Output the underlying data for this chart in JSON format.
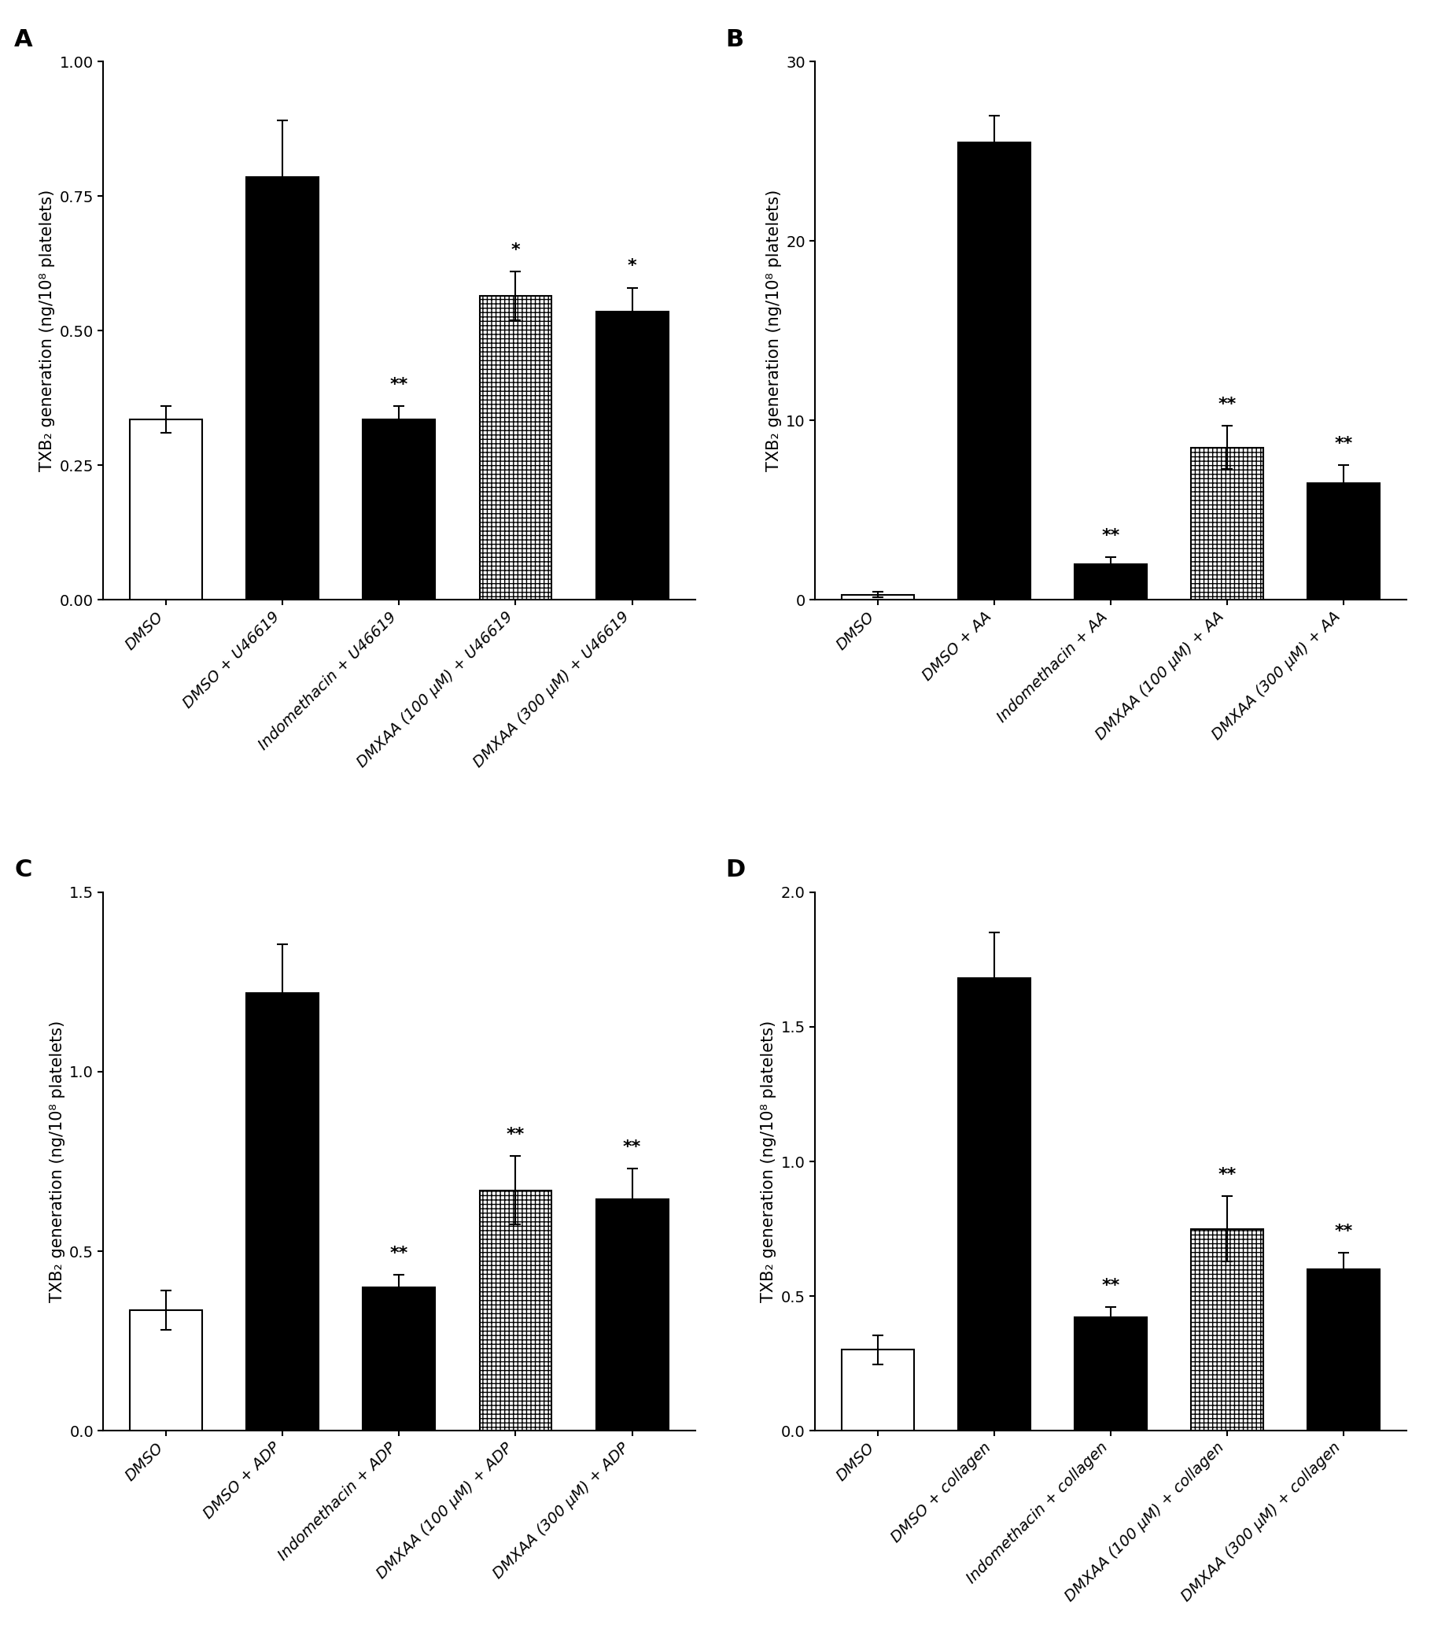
{
  "panel_A": {
    "label": "A",
    "categories": [
      "DMSO",
      "DMSO + U46619",
      "Indomethacin + U46619",
      "DMXAA (100 μM) + U46619",
      "DMXAA (300 μM) + U46619"
    ],
    "values": [
      0.335,
      0.785,
      0.335,
      0.565,
      0.535
    ],
    "errors": [
      0.025,
      0.105,
      0.025,
      0.045,
      0.045
    ],
    "facecolors": [
      "white",
      "black",
      "black",
      "white",
      "black"
    ],
    "patterns": [
      "",
      "",
      "",
      "+++",
      "////"
    ],
    "significance": [
      "",
      "",
      "**",
      "*",
      "*"
    ],
    "ylabel": "TXB₂ generation (ng/10⁸ platelets)",
    "ylim": [
      0.0,
      1.0
    ],
    "yticks": [
      0.0,
      0.25,
      0.5,
      0.75,
      1.0
    ],
    "yticklabels": [
      "0.00",
      "0.25",
      "0.50",
      "0.75",
      "1.00"
    ]
  },
  "panel_B": {
    "label": "B",
    "categories": [
      "DMSO",
      "DMSO + AA",
      "Indomethacin + AA",
      "DMXAA (100 μM) + AA",
      "DMXAA (300 μM) + AA"
    ],
    "values": [
      0.3,
      25.5,
      2.0,
      8.5,
      6.5
    ],
    "errors": [
      0.15,
      1.5,
      0.4,
      1.2,
      1.0
    ],
    "facecolors": [
      "white",
      "black",
      "black",
      "white",
      "black"
    ],
    "patterns": [
      "",
      "",
      "",
      "+++",
      "////"
    ],
    "significance": [
      "",
      "",
      "**",
      "**",
      "**"
    ],
    "ylabel": "TXB₂ generation (ng/10⁸ platelets)",
    "ylim": [
      0,
      30
    ],
    "yticks": [
      0,
      10,
      20,
      30
    ],
    "yticklabels": [
      "0",
      "10",
      "20",
      "30"
    ]
  },
  "panel_C": {
    "label": "C",
    "categories": [
      "DMSO",
      "DMSO + ADP",
      "Indomethacin + ADP",
      "DMXAA (100 μM) + ADP",
      "DMXAA (300 μM) + ADP"
    ],
    "values": [
      0.335,
      1.22,
      0.4,
      0.67,
      0.645
    ],
    "errors": [
      0.055,
      0.135,
      0.035,
      0.095,
      0.085
    ],
    "facecolors": [
      "white",
      "black",
      "black",
      "white",
      "black"
    ],
    "patterns": [
      "",
      "",
      "",
      "+++",
      "////"
    ],
    "significance": [
      "",
      "",
      "**",
      "**",
      "**"
    ],
    "ylabel": "TXB₂ generation (ng/10⁸ platelets)",
    "ylim": [
      0.0,
      1.5
    ],
    "yticks": [
      0.0,
      0.5,
      1.0,
      1.5
    ],
    "yticklabels": [
      "0.0",
      "0.5",
      "1.0",
      "1.5"
    ]
  },
  "panel_D": {
    "label": "D",
    "categories": [
      "DMSO",
      "DMSO + collagen",
      "Indomethacin + collagen",
      "DMXAA (100 μM) + collagen",
      "DMXAA (300 μM) + collagen"
    ],
    "values": [
      0.3,
      1.68,
      0.42,
      0.75,
      0.6
    ],
    "errors": [
      0.055,
      0.17,
      0.04,
      0.12,
      0.06
    ],
    "facecolors": [
      "white",
      "black",
      "black",
      "white",
      "black"
    ],
    "patterns": [
      "",
      "",
      "",
      "+++",
      "////"
    ],
    "significance": [
      "",
      "",
      "**",
      "**",
      "**"
    ],
    "ylabel": "TXB₂ generation (ng/10⁸ platelets)",
    "ylim": [
      0.0,
      2.0
    ],
    "yticks": [
      0.0,
      0.5,
      1.0,
      1.5,
      2.0
    ],
    "yticklabels": [
      "0.0",
      "0.5",
      "1.0",
      "1.5",
      "2.0"
    ]
  },
  "bar_width": 0.62,
  "fontsize_ylabel": 15,
  "fontsize_tick": 14,
  "fontsize_sig": 16,
  "fontsize_panel": 22
}
